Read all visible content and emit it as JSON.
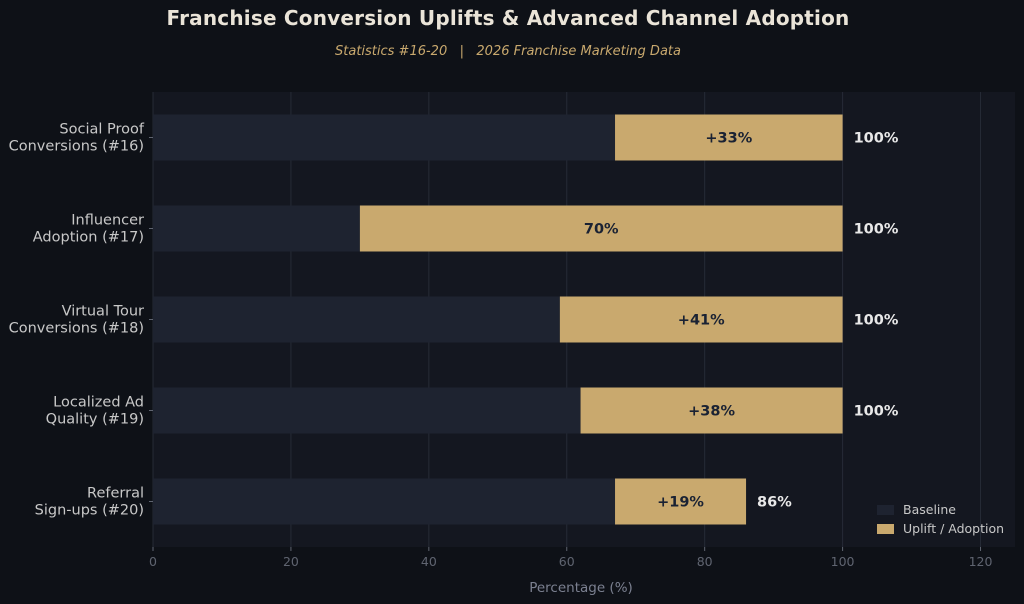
{
  "title": "Franchise Conversion Uplifts & Advanced Channel Adoption",
  "subtitle": "Statistics #16-20   |   2026 Franchise Marketing Data",
  "colors": {
    "background": "#0e1117",
    "plot_background": "#141720",
    "baseline": "#1e2330",
    "uplift": "#c9a96e",
    "bar_label_text": "#1a2233",
    "total_label_text": "#e8e8e8",
    "axis_text": "#5f6470",
    "category_text": "#c8c8c8",
    "grid": "#262b36"
  },
  "chart_data": {
    "type": "bar",
    "orientation": "horizontal",
    "stacked": true,
    "categories": [
      [
        "Social Proof",
        "Conversions (#16)"
      ],
      [
        "Influencer",
        "Adoption (#17)"
      ],
      [
        "Virtual Tour",
        "Conversions (#18)"
      ],
      [
        "Localized Ad",
        "Quality (#19)"
      ],
      [
        "Referral",
        "Sign-ups (#20)"
      ]
    ],
    "series": [
      {
        "name": "Baseline",
        "values": [
          67,
          30,
          59,
          62,
          67
        ]
      },
      {
        "name": "Uplift / Adoption",
        "values": [
          33,
          70,
          41,
          38,
          19
        ]
      }
    ],
    "bar_labels": [
      "+33%",
      "70%",
      "+41%",
      "+38%",
      "+19%"
    ],
    "total_labels": [
      "100%",
      "100%",
      "100%",
      "100%",
      "86%"
    ],
    "xlabel": "Percentage (%)",
    "ylabel": "",
    "xlim": [
      0,
      125
    ],
    "xticks": [
      0,
      20,
      40,
      60,
      80,
      100,
      120
    ],
    "grid": true,
    "legend_position": "bottom-right"
  }
}
